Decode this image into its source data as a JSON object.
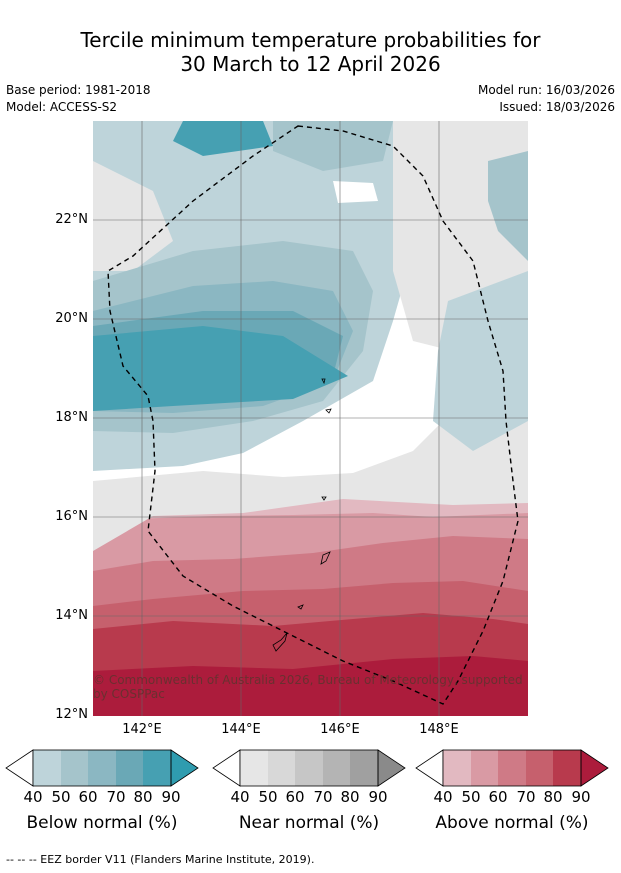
{
  "title": {
    "line1": "Tercile minimum temperature probabilities for",
    "line2": "30 March to 12 April 2026"
  },
  "meta": {
    "base_period": "Base period: 1981-2018",
    "model": "Model: ACCESS-S2",
    "model_run": "Model run: 16/03/2026",
    "issued": "Issued: 18/03/2026"
  },
  "map": {
    "lat_labels": [
      "22°N",
      "20°N",
      "18°N",
      "16°N",
      "14°N",
      "12°N"
    ],
    "lon_labels": [
      "142°E",
      "144°E",
      "146°E",
      "148°E"
    ],
    "credit": "© Commonwealth of Australia 2026, Bureau of Meteorology, supported by COSPPac",
    "colors": {
      "below": [
        "#bed4da",
        "#a5c4cb",
        "#8bb7c2",
        "#6aa8b6",
        "#46a0b2",
        "#2f9caf"
      ],
      "near": [
        "#e6e6e6",
        "#d8d8d8",
        "#c6c6c6",
        "#b4b4b4",
        "#a0a0a0",
        "#8a8a8a"
      ],
      "above": [
        "#e2b9c1",
        "#d99aa4",
        "#cf7a86",
        "#c6606d",
        "#b83a4d",
        "#ac1c3c"
      ]
    }
  },
  "legend": {
    "ticks": [
      "40",
      "50",
      "60",
      "70",
      "80",
      "90"
    ],
    "below_label": "Below normal (%)",
    "near_label": "Near normal (%)",
    "above_label": "Above normal (%)"
  },
  "footnote": "--  --  -- EEZ border V11 (Flanders Marine Institute, 2019)."
}
